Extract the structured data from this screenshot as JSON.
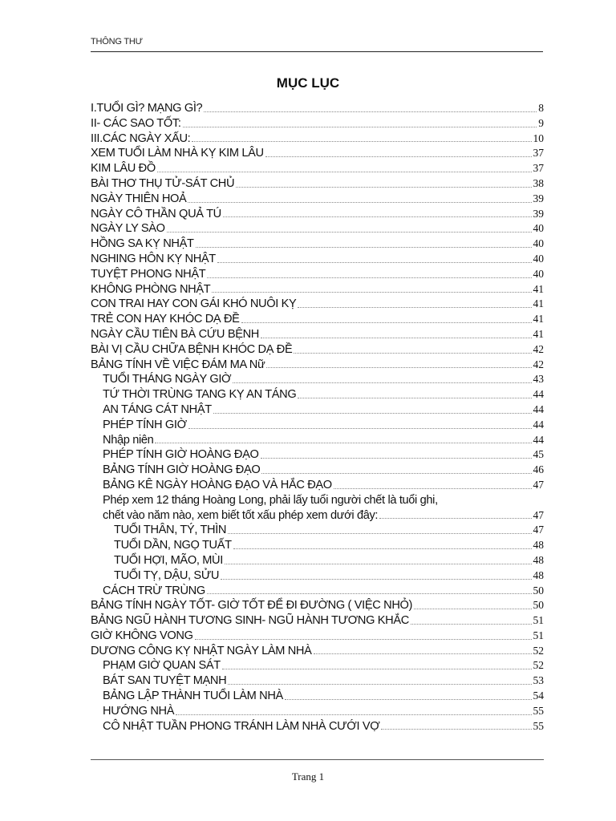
{
  "header": {
    "running_title": "THÔNG THƯ"
  },
  "title": "MỤC LỤC",
  "entries": [
    {
      "text": "I.TUỔI GÌ? MẠNG GÌ?",
      "page": "8",
      "level": 0
    },
    {
      "text": "II- CÁC SAO TỐT:",
      "page": "9",
      "level": 0
    },
    {
      "text": "III.CÁC NGÀY XẤU:",
      "page": "10",
      "level": 0
    },
    {
      "text": "XEM TUỔI LÀM NHÀ KỴ KIM LÂU",
      "page": "37",
      "level": 0
    },
    {
      "text": "KIM LÂU ĐỒ",
      "page": "37",
      "level": 0
    },
    {
      "text": "BÀI THƠ THỤ TỬ-SÁT CHỦ",
      "page": "38",
      "level": 0
    },
    {
      "text": "NGÀY THIÊN HOẢ",
      "page": "39",
      "level": 0
    },
    {
      "text": "NGÀY CÔ THẦN QUẢ TÚ",
      "page": "39",
      "level": 0
    },
    {
      "text": "NGÀY LY SÀO",
      "page": "40",
      "level": 0
    },
    {
      "text": "HỒNG SA KỴ NHẬT",
      "page": "40",
      "level": 0
    },
    {
      "text": "NGHING HÔN KỴ NHẬT",
      "page": "40",
      "level": 0
    },
    {
      "text": "TUYỆT PHONG NHẬT",
      "page": "40",
      "level": 0
    },
    {
      "text": "KHÔNG PHÒNG NHẬT",
      "page": "41",
      "level": 0
    },
    {
      "text": "CON TRAI HAY CON GÁI KHÓ NUÔI KỴ",
      "page": "41",
      "level": 0
    },
    {
      "text": "TRẺ CON HAY KHÓC DẠ ĐỀ",
      "page": "41",
      "level": 0
    },
    {
      "text": "NGÀY CẦU TIÊN BÀ CỨU BỆNH",
      "page": "41",
      "level": 0
    },
    {
      "text": "BÀI VỊ CẦU CHỮA BỆNH KHÓC DẠ ĐỀ",
      "page": "42",
      "level": 0
    },
    {
      "text": "BẢNG TÍNH VỀ VIỆC ĐÁM MA   Nữ",
      "page": "42",
      "level": 0
    },
    {
      "text": "TUỔI THÁNG NGÀY GIỜ",
      "page": "43",
      "level": 1
    },
    {
      "text": "TỨ THỜI TRÙNG TANG KỴ AN TÁNG",
      "page": "44",
      "level": 1
    },
    {
      "text": "AN TÁNG CÁT NHẬT",
      "page": "44",
      "level": 1
    },
    {
      "text": "PHÉP TÍNH GIỜ",
      "page": "44",
      "level": 1
    },
    {
      "text": "Nhập niên",
      "page": "44",
      "level": 1
    },
    {
      "text": "PHÉP TÍNH GIỜ HOÀNG ĐẠO",
      "page": "45",
      "level": 1
    },
    {
      "text": "BẢNG TÍNH GIỜ HOÀNG ĐẠO",
      "page": "46",
      "level": 1
    },
    {
      "text": "BẢNG KÊ NGÀY HOÀNG ĐẠO VÀ HẮC ĐẠO",
      "page": "47",
      "level": 1
    },
    {
      "text": "Phép xem 12 tháng Hoàng Long, phải lấy tuổi người chết là tuổi ghi,",
      "text2": "chết vào năm nào, xem biết tốt xấu phép xem dưới đây:",
      "page": "47",
      "level": 1
    },
    {
      "text": "TUỔI THÂN, TÝ, THÌN",
      "page": "47",
      "level": 2
    },
    {
      "text": "TUỔI DẦN, NGỌ TUẤT",
      "page": "48",
      "level": 2
    },
    {
      "text": "TUỔI HỢI, MÃO, MÙI",
      "page": "48",
      "level": 2
    },
    {
      "text": "TUỔI TỴ, DẬU, SỬU",
      "page": "48",
      "level": 2
    },
    {
      "text": "CÁCH TRỪ TRÙNG",
      "page": "50",
      "level": 1
    },
    {
      "text": "BẢNG TÍNH NGÀY TỐT- GIỜ TỐT ĐỂ ĐI ĐƯỜNG ( VIỆC NHỎ)",
      "page": "50",
      "level": 0
    },
    {
      "text": "BẢNG NGŨ HÀNH TƯƠNG SINH- NGŨ HÀNH TƯƠNG KHẮC",
      "page": "51",
      "level": 0
    },
    {
      "text": "GIỜ KHÔNG VONG",
      "page": "51",
      "level": 0
    },
    {
      "text": "DƯƠNG CÔNG KỴ NHẬT NGÀY LÀM NHÀ",
      "page": "52",
      "level": 0
    },
    {
      "text": "PHẠM GIỜ QUAN SÁT",
      "page": "52",
      "level": 1
    },
    {
      "text": "BÁT SAN TUYỆT MẠNH",
      "page": "53",
      "level": 1
    },
    {
      "text": "BẢNG LẬP THÀNH TUỔI LÀM NHÀ",
      "page": "54",
      "level": 1
    },
    {
      "text": "HƯỚNG NHÀ",
      "page": "55",
      "level": 1
    },
    {
      "text": "CÔ NHẬT TUẦN PHONG TRÁNH LÀM NHÀ CƯỚI VỢ",
      "page": "55",
      "level": 1
    }
  ],
  "footer": {
    "page_label": "Trang 1"
  }
}
